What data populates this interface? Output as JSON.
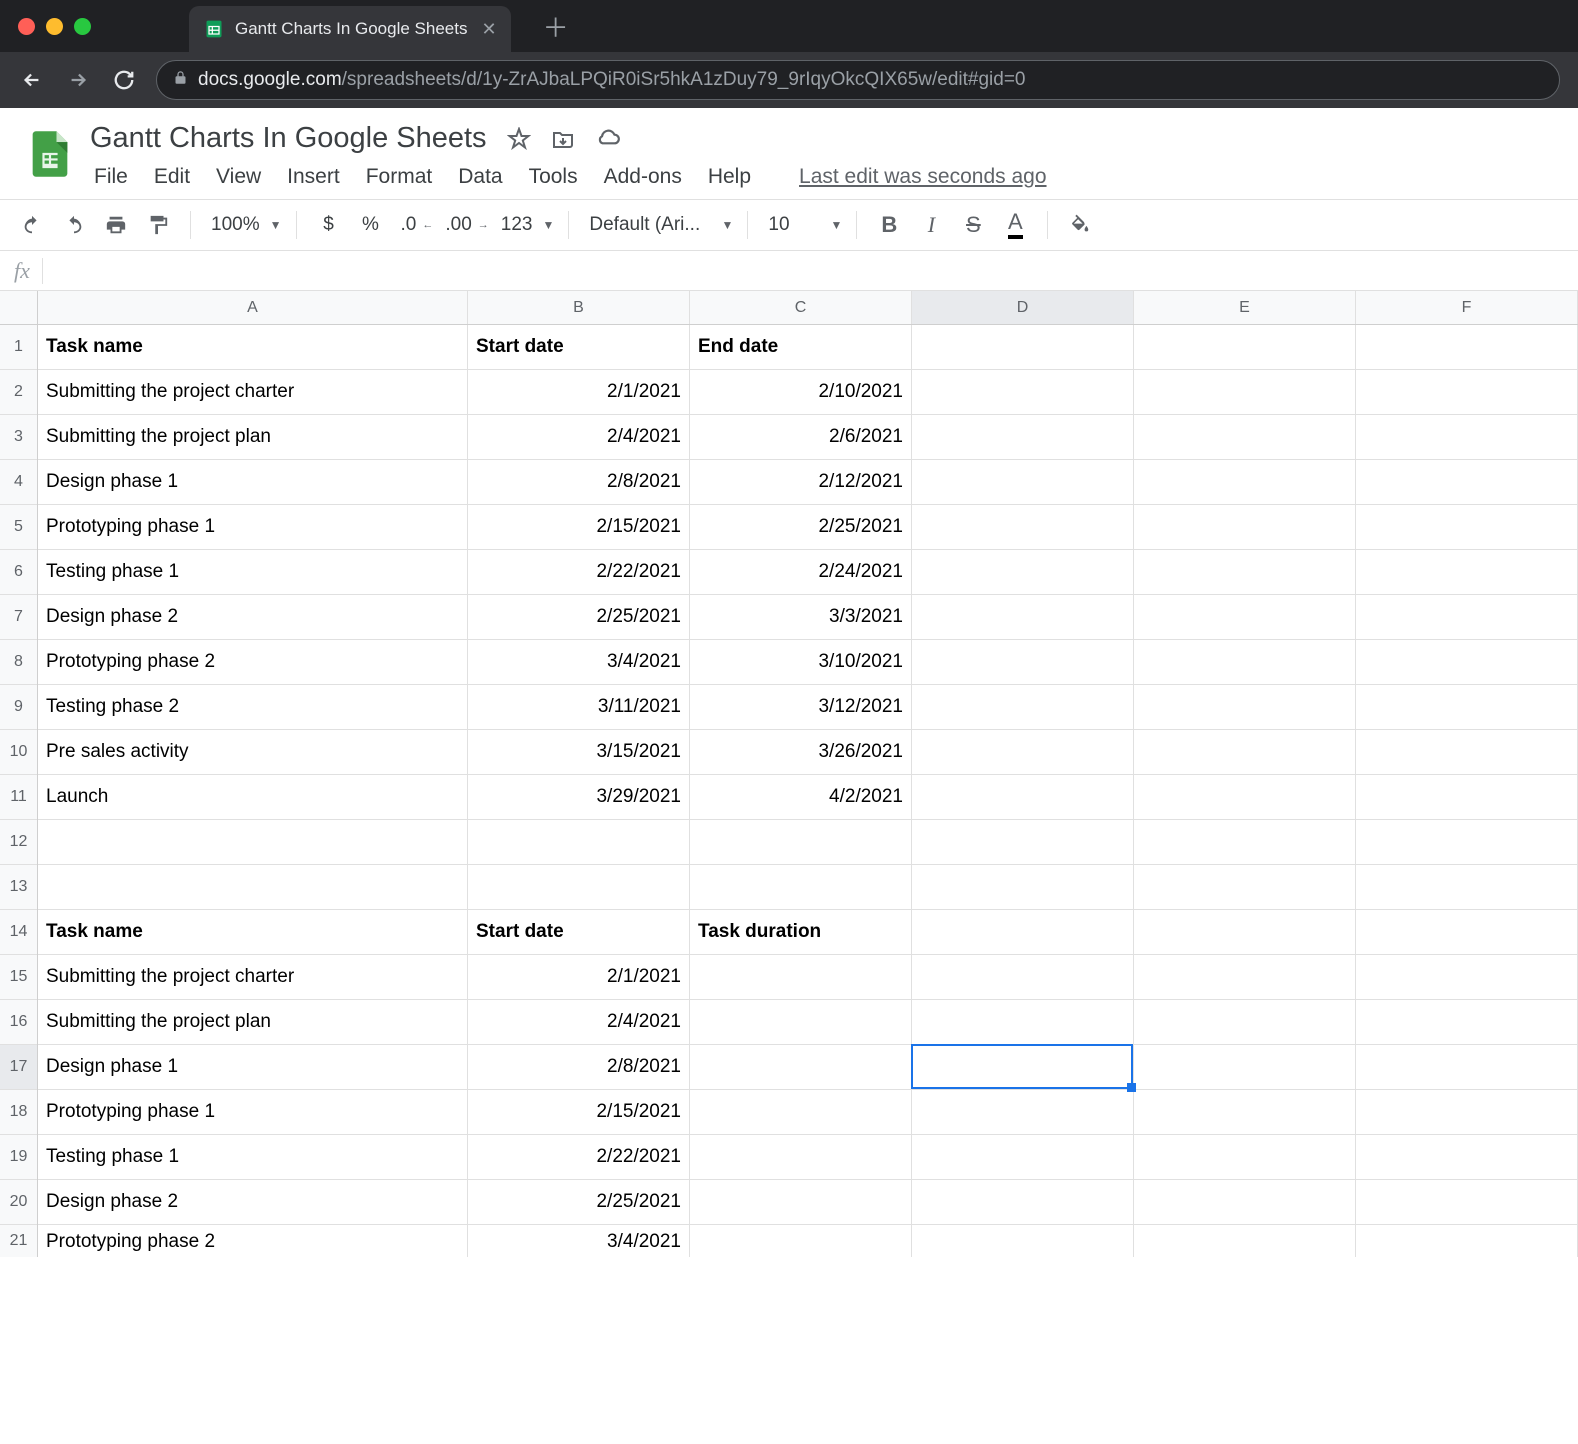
{
  "browser": {
    "tab_title": "Gantt Charts In Google Sheets",
    "url_domain": "docs.google.com",
    "url_path": "/spreadsheets/d/1y-ZrAJbaLPQiR0iSr5hkA1zDuy79_9rIqyOkcQIX65w/edit#gid=0"
  },
  "doc": {
    "title": "Gantt Charts In Google Sheets",
    "last_edit": "Last edit was seconds ago"
  },
  "menu": {
    "file": "File",
    "edit": "Edit",
    "view": "View",
    "insert": "Insert",
    "format": "Format",
    "data": "Data",
    "tools": "Tools",
    "addons": "Add-ons",
    "help": "Help"
  },
  "toolbar": {
    "zoom": "100%",
    "font": "Default (Ari...",
    "font_size": "10",
    "currency": "$",
    "percent": "%",
    "dec_less": ".0",
    "dec_more": ".00",
    "num_fmt": "123",
    "bold": "B",
    "italic": "I",
    "strike": "S",
    "text_color": "A"
  },
  "formula": {
    "fx": "fx",
    "value": ""
  },
  "columns": [
    "A",
    "B",
    "C",
    "D",
    "E",
    "F"
  ],
  "selected_cell": {
    "col": "D",
    "row": 17
  },
  "rows": [
    {
      "n": 1,
      "bold": true,
      "cells": [
        "Task name",
        "Start date",
        "End date",
        "",
        "",
        ""
      ],
      "align": [
        "l",
        "l",
        "l",
        "l",
        "l",
        "l"
      ]
    },
    {
      "n": 2,
      "cells": [
        "Submitting the project charter",
        "2/1/2021",
        "2/10/2021",
        "",
        "",
        ""
      ],
      "align": [
        "l",
        "r",
        "r",
        "l",
        "l",
        "l"
      ]
    },
    {
      "n": 3,
      "cells": [
        "Submitting the project plan",
        "2/4/2021",
        "2/6/2021",
        "",
        "",
        ""
      ],
      "align": [
        "l",
        "r",
        "r",
        "l",
        "l",
        "l"
      ]
    },
    {
      "n": 4,
      "cells": [
        "Design phase 1",
        "2/8/2021",
        "2/12/2021",
        "",
        "",
        ""
      ],
      "align": [
        "l",
        "r",
        "r",
        "l",
        "l",
        "l"
      ]
    },
    {
      "n": 5,
      "cells": [
        "Prototyping phase 1",
        "2/15/2021",
        "2/25/2021",
        "",
        "",
        ""
      ],
      "align": [
        "l",
        "r",
        "r",
        "l",
        "l",
        "l"
      ]
    },
    {
      "n": 6,
      "cells": [
        "Testing phase 1",
        "2/22/2021",
        "2/24/2021",
        "",
        "",
        ""
      ],
      "align": [
        "l",
        "r",
        "r",
        "l",
        "l",
        "l"
      ]
    },
    {
      "n": 7,
      "cells": [
        "Design phase 2",
        "2/25/2021",
        "3/3/2021",
        "",
        "",
        ""
      ],
      "align": [
        "l",
        "r",
        "r",
        "l",
        "l",
        "l"
      ]
    },
    {
      "n": 8,
      "cells": [
        "Prototyping phase 2",
        "3/4/2021",
        "3/10/2021",
        "",
        "",
        ""
      ],
      "align": [
        "l",
        "r",
        "r",
        "l",
        "l",
        "l"
      ]
    },
    {
      "n": 9,
      "cells": [
        "Testing phase 2",
        "3/11/2021",
        "3/12/2021",
        "",
        "",
        ""
      ],
      "align": [
        "l",
        "r",
        "r",
        "l",
        "l",
        "l"
      ]
    },
    {
      "n": 10,
      "cells": [
        "Pre sales activity",
        "3/15/2021",
        "3/26/2021",
        "",
        "",
        ""
      ],
      "align": [
        "l",
        "r",
        "r",
        "l",
        "l",
        "l"
      ]
    },
    {
      "n": 11,
      "cells": [
        "Launch",
        "3/29/2021",
        "4/2/2021",
        "",
        "",
        ""
      ],
      "align": [
        "l",
        "r",
        "r",
        "l",
        "l",
        "l"
      ]
    },
    {
      "n": 12,
      "cells": [
        "",
        "",
        "",
        "",
        "",
        ""
      ],
      "align": [
        "l",
        "l",
        "l",
        "l",
        "l",
        "l"
      ]
    },
    {
      "n": 13,
      "cells": [
        "",
        "",
        "",
        "",
        "",
        ""
      ],
      "align": [
        "l",
        "l",
        "l",
        "l",
        "l",
        "l"
      ]
    },
    {
      "n": 14,
      "bold": true,
      "cells": [
        "Task name",
        "Start date",
        "Task duration",
        "",
        "",
        ""
      ],
      "align": [
        "l",
        "l",
        "l",
        "l",
        "l",
        "l"
      ]
    },
    {
      "n": 15,
      "cells": [
        "Submitting the project charter",
        "2/1/2021",
        "",
        "",
        "",
        ""
      ],
      "align": [
        "l",
        "r",
        "r",
        "l",
        "l",
        "l"
      ]
    },
    {
      "n": 16,
      "cells": [
        "Submitting the project plan",
        "2/4/2021",
        "",
        "",
        "",
        ""
      ],
      "align": [
        "l",
        "r",
        "r",
        "l",
        "l",
        "l"
      ]
    },
    {
      "n": 17,
      "cells": [
        "Design phase 1",
        "2/8/2021",
        "",
        "",
        "",
        ""
      ],
      "align": [
        "l",
        "r",
        "r",
        "l",
        "l",
        "l"
      ]
    },
    {
      "n": 18,
      "cells": [
        "Prototyping phase 1",
        "2/15/2021",
        "",
        "",
        "",
        ""
      ],
      "align": [
        "l",
        "r",
        "r",
        "l",
        "l",
        "l"
      ]
    },
    {
      "n": 19,
      "cells": [
        "Testing phase 1",
        "2/22/2021",
        "",
        "",
        "",
        ""
      ],
      "align": [
        "l",
        "r",
        "r",
        "l",
        "l",
        "l"
      ]
    },
    {
      "n": 20,
      "cells": [
        "Design phase 2",
        "2/25/2021",
        "",
        "",
        "",
        ""
      ],
      "align": [
        "l",
        "r",
        "r",
        "l",
        "l",
        "l"
      ]
    },
    {
      "n": 21,
      "cells": [
        "Prototyping phase 2",
        "3/4/2021",
        "",
        "",
        "",
        ""
      ],
      "align": [
        "l",
        "r",
        "r",
        "l",
        "l",
        "l"
      ],
      "partial": true
    }
  ],
  "col_widths": {
    "A": 430,
    "B": 222,
    "C": 222,
    "D": 222,
    "E": 222,
    "F": 222
  },
  "colors": {
    "selection": "#1a73e8",
    "sheets_green": "#0f9d58"
  }
}
